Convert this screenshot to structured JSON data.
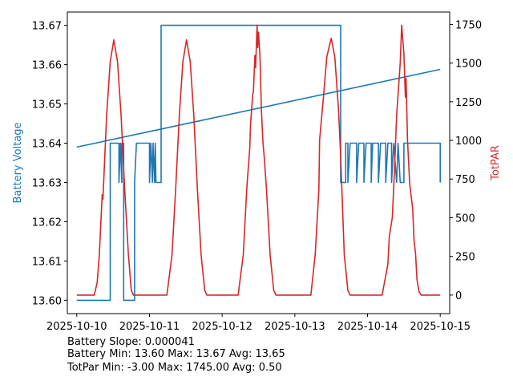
{
  "chart_data": {
    "type": "line",
    "xlabel": "",
    "ylabel_left": "Battery Voltage",
    "ylabel_right": "TotPAR",
    "x_unit": "days since 2025-10-10",
    "xlim": [
      -0.13,
      5.13
    ],
    "ylim_left": [
      13.5966,
      13.6734
    ],
    "ylim_right": [
      -120,
      1830
    ],
    "x_ticks": [
      {
        "v": 0,
        "label": "2025-10-10"
      },
      {
        "v": 1,
        "label": "2025-10-11"
      },
      {
        "v": 2,
        "label": "2025-10-12"
      },
      {
        "v": 3,
        "label": "2025-10-13"
      },
      {
        "v": 4,
        "label": "2025-10-14"
      },
      {
        "v": 5,
        "label": "2025-10-15"
      }
    ],
    "left_ticks": [
      {
        "v": 13.6,
        "label": "13.60"
      },
      {
        "v": 13.61,
        "label": "13.61"
      },
      {
        "v": 13.62,
        "label": "13.62"
      },
      {
        "v": 13.63,
        "label": "13.63"
      },
      {
        "v": 13.64,
        "label": "13.64"
      },
      {
        "v": 13.65,
        "label": "13.65"
      },
      {
        "v": 13.66,
        "label": "13.66"
      },
      {
        "v": 13.67,
        "label": "13.67"
      }
    ],
    "right_ticks": [
      {
        "v": 0,
        "label": "0"
      },
      {
        "v": 250,
        "label": "250"
      },
      {
        "v": 500,
        "label": "500"
      },
      {
        "v": 750,
        "label": "750"
      },
      {
        "v": 1000,
        "label": "1000"
      },
      {
        "v": 1250,
        "label": "1250"
      },
      {
        "v": 1500,
        "label": "1500"
      },
      {
        "v": 1750,
        "label": "1750"
      }
    ],
    "series": [
      {
        "name": "Battery Voltage",
        "axis": "left",
        "color": "#1f77b4",
        "step": true,
        "points": [
          [
            0,
            13.6
          ],
          [
            0.46,
            13.6
          ],
          [
            0.46,
            13.64
          ],
          [
            0.58,
            13.64
          ],
          [
            0.58,
            13.63
          ],
          [
            0.6,
            13.64
          ],
          [
            0.62,
            13.63
          ],
          [
            0.62,
            13.64
          ],
          [
            0.645,
            13.64
          ],
          [
            0.645,
            13.6
          ],
          [
            0.795,
            13.6
          ],
          [
            0.795,
            13.63
          ],
          [
            0.82,
            13.64
          ],
          [
            1.0,
            13.64
          ],
          [
            1.0,
            13.63
          ],
          [
            1.02,
            13.64
          ],
          [
            1.04,
            13.63
          ],
          [
            1.05,
            13.64
          ],
          [
            1.07,
            13.63
          ],
          [
            1.08,
            13.64
          ],
          [
            1.09,
            13.63
          ],
          [
            1.16,
            13.63
          ],
          [
            1.16,
            13.67
          ],
          [
            3.63,
            13.67
          ],
          [
            3.63,
            13.63
          ],
          [
            3.7,
            13.63
          ],
          [
            3.7,
            13.64
          ],
          [
            3.73,
            13.64
          ],
          [
            3.73,
            13.63
          ],
          [
            3.76,
            13.64
          ],
          [
            3.85,
            13.64
          ],
          [
            3.85,
            13.63
          ],
          [
            3.88,
            13.64
          ],
          [
            3.95,
            13.64
          ],
          [
            3.95,
            13.63
          ],
          [
            3.98,
            13.64
          ],
          [
            4.05,
            13.64
          ],
          [
            4.05,
            13.63
          ],
          [
            4.07,
            13.64
          ],
          [
            4.15,
            13.64
          ],
          [
            4.15,
            13.63
          ],
          [
            4.18,
            13.64
          ],
          [
            4.25,
            13.64
          ],
          [
            4.25,
            13.63
          ],
          [
            4.28,
            13.64
          ],
          [
            4.33,
            13.64
          ],
          [
            4.33,
            13.63
          ],
          [
            4.36,
            13.64
          ],
          [
            4.4,
            13.63
          ],
          [
            4.42,
            13.64
          ],
          [
            4.45,
            13.63
          ],
          [
            4.5,
            13.63
          ],
          [
            4.5,
            13.64
          ],
          [
            5.0,
            13.64
          ],
          [
            5.0,
            13.63
          ]
        ]
      },
      {
        "name": "Battery Trend",
        "axis": "left",
        "color": "#1f77b4",
        "points": [
          [
            0,
            13.639
          ],
          [
            5,
            13.6588
          ]
        ]
      },
      {
        "name": "TotPAR",
        "axis": "right",
        "color": "#d62728",
        "points": [
          [
            0,
            0
          ],
          [
            0.24,
            0
          ],
          [
            0.28,
            80
          ],
          [
            0.31,
            260
          ],
          [
            0.35,
            650
          ],
          [
            0.36,
            620
          ],
          [
            0.41,
            1160
          ],
          [
            0.46,
            1510
          ],
          [
            0.51,
            1650
          ],
          [
            0.56,
            1510
          ],
          [
            0.61,
            1160
          ],
          [
            0.66,
            680
          ],
          [
            0.71,
            260
          ],
          [
            0.75,
            30
          ],
          [
            0.78,
            0
          ],
          [
            1.24,
            0
          ],
          [
            1.31,
            260
          ],
          [
            1.36,
            680
          ],
          [
            1.41,
            1160
          ],
          [
            1.46,
            1510
          ],
          [
            1.51,
            1650
          ],
          [
            1.56,
            1510
          ],
          [
            1.61,
            1160
          ],
          [
            1.66,
            680
          ],
          [
            1.71,
            260
          ],
          [
            1.76,
            30
          ],
          [
            1.79,
            0
          ],
          [
            2.22,
            0
          ],
          [
            2.29,
            260
          ],
          [
            2.34,
            700
          ],
          [
            2.38,
            950
          ],
          [
            2.39,
            1100
          ],
          [
            2.42,
            1290
          ],
          [
            2.43,
            1320
          ],
          [
            2.45,
            1550
          ],
          [
            2.46,
            1470
          ],
          [
            2.48,
            1745
          ],
          [
            2.49,
            1600
          ],
          [
            2.5,
            1700
          ],
          [
            2.52,
            1550
          ],
          [
            2.54,
            1200
          ],
          [
            2.56,
            1000
          ],
          [
            2.58,
            880
          ],
          [
            2.61,
            680
          ],
          [
            2.66,
            260
          ],
          [
            2.71,
            30
          ],
          [
            2.74,
            0
          ],
          [
            3.22,
            0
          ],
          [
            3.28,
            260
          ],
          [
            3.33,
            680
          ],
          [
            3.34,
            1000
          ],
          [
            3.38,
            1210
          ],
          [
            3.39,
            1260
          ],
          [
            3.44,
            1540
          ],
          [
            3.5,
            1660
          ],
          [
            3.55,
            1540
          ],
          [
            3.6,
            1200
          ],
          [
            3.62,
            1000
          ],
          [
            3.64,
            770
          ],
          [
            3.68,
            260
          ],
          [
            3.73,
            30
          ],
          [
            3.76,
            0
          ],
          [
            4.2,
            0
          ],
          [
            4.28,
            200
          ],
          [
            4.3,
            380
          ],
          [
            4.34,
            500
          ],
          [
            4.37,
            800
          ],
          [
            4.4,
            1160
          ],
          [
            4.45,
            1500
          ],
          [
            4.47,
            1745
          ],
          [
            4.5,
            1560
          ],
          [
            4.52,
            1280
          ],
          [
            4.53,
            1400
          ],
          [
            4.55,
            1000
          ],
          [
            4.58,
            720
          ],
          [
            4.62,
            560
          ],
          [
            4.64,
            350
          ],
          [
            4.66,
            270
          ],
          [
            4.68,
            100
          ],
          [
            4.71,
            20
          ],
          [
            4.74,
            0
          ],
          [
            5.0,
            0
          ]
        ]
      }
    ],
    "annotations": [
      "Battery Slope: 0.000041",
      "Battery Min: 13.60 Max: 13.67 Avg: 13.65",
      "TotPar Min: -3.00 Max: 1745.00 Avg: 0.50"
    ]
  }
}
